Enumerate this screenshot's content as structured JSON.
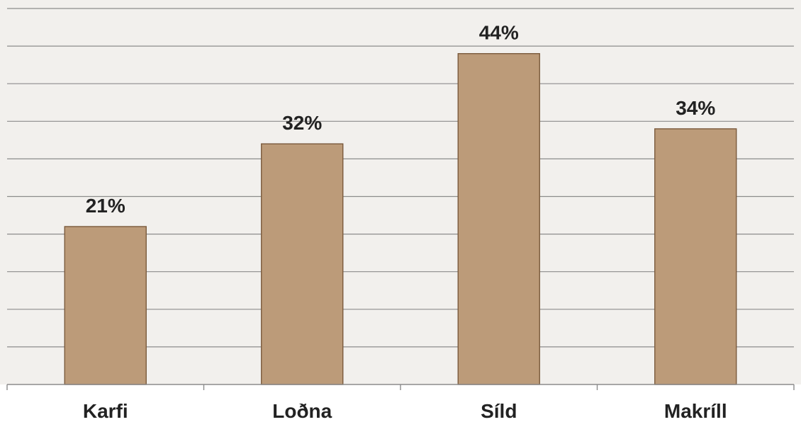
{
  "colors": {
    "plot_background": "#f2f0ed",
    "bar_fill": "#bc9b79",
    "bar_border": "#7a5a3c",
    "gridline": "#8c8c8c",
    "text": "#222222"
  },
  "chart_data": {
    "type": "bar",
    "title": "",
    "xlabel": "",
    "ylabel": "",
    "categories": [
      "Karfi",
      "Loðna",
      "Síld",
      "Makríll"
    ],
    "values": [
      21,
      32,
      44,
      34
    ],
    "value_labels": [
      "21%",
      "32%",
      "44%",
      "34%"
    ],
    "unit": "%",
    "ylim": [
      0,
      50
    ],
    "gridline_step": 5,
    "grid": true,
    "legend": "none",
    "y_tick_labels_visible": false
  }
}
